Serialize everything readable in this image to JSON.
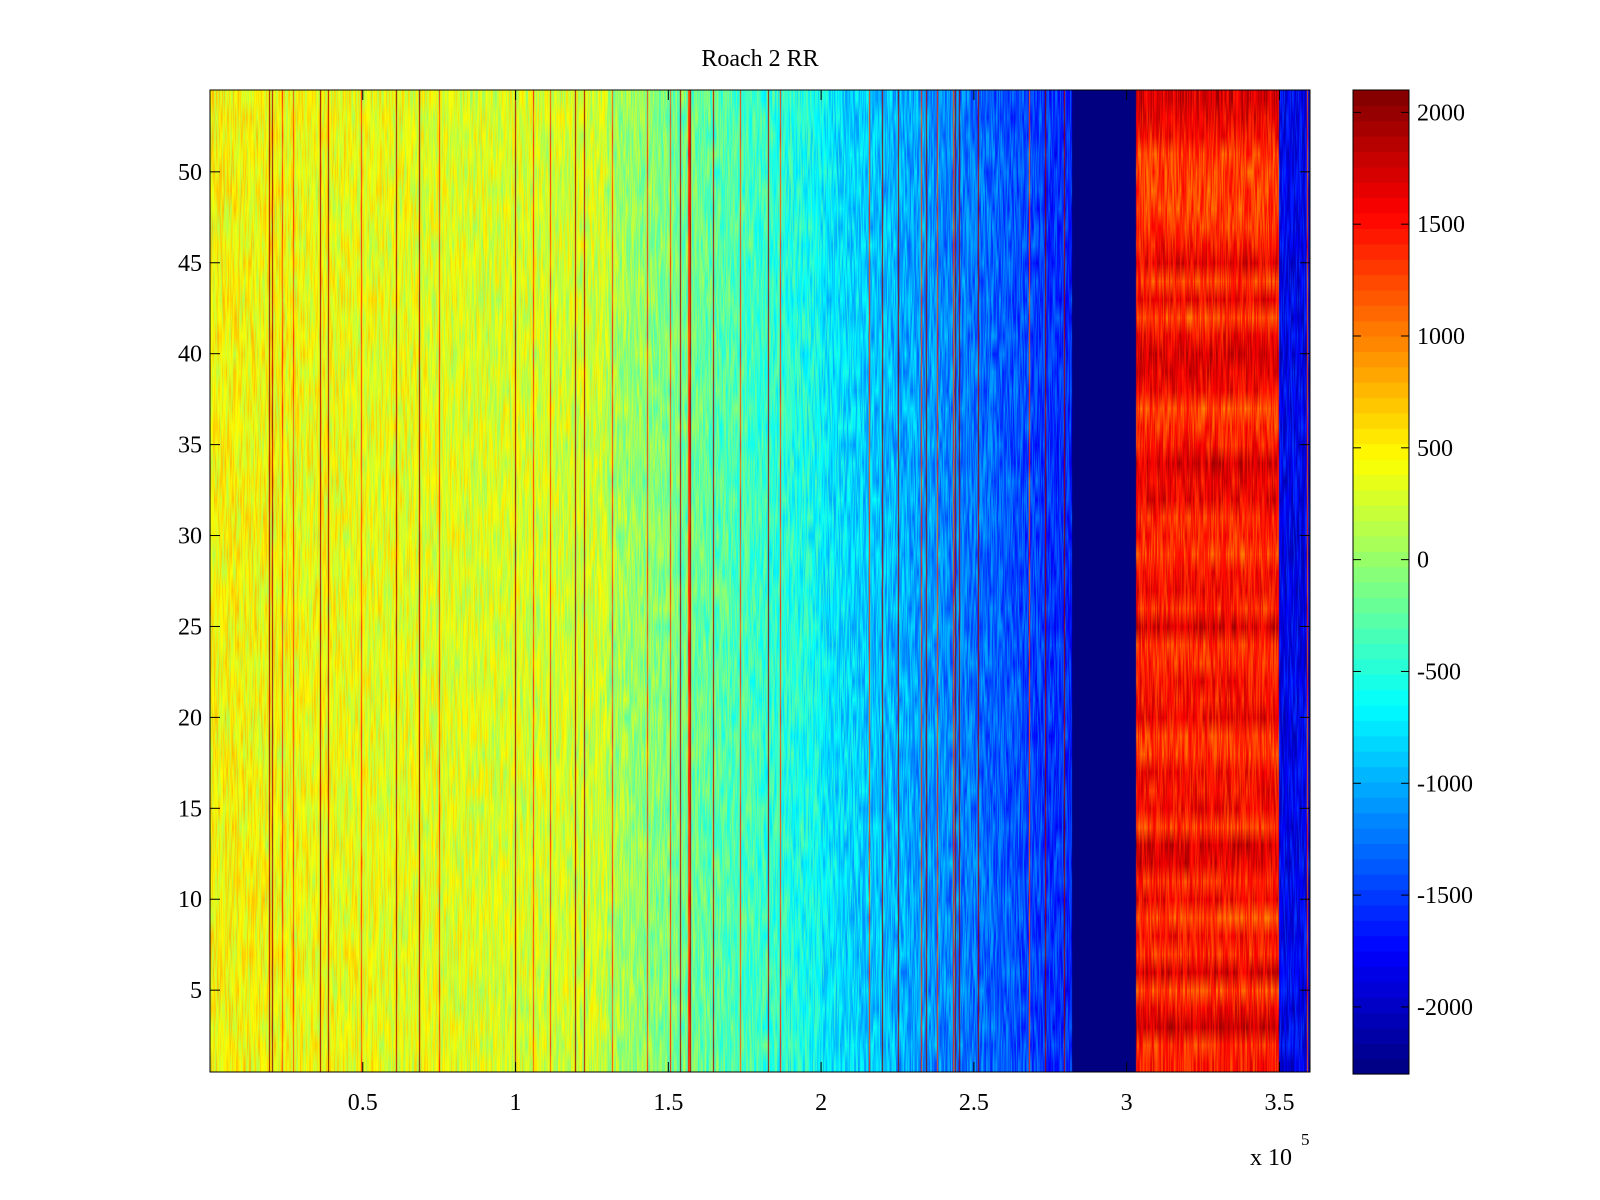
{
  "chart_data": {
    "type": "heatmap",
    "title": "Roach 2 RR",
    "xlabel": "",
    "ylabel": "",
    "x_scale_label": "x 10",
    "x_scale_exponent": "5",
    "xlim": [
      1,
      360000
    ],
    "ylim": [
      0.5,
      54.5
    ],
    "x_ticks": [
      0.5,
      1,
      1.5,
      2,
      2.5,
      3,
      3.5
    ],
    "x_tick_labels": [
      "0.5",
      "1",
      "1.5",
      "2",
      "2.5",
      "3",
      "3.5"
    ],
    "y_ticks": [
      5,
      10,
      15,
      20,
      25,
      30,
      35,
      40,
      45,
      50
    ],
    "y_tick_labels": [
      "5",
      "10",
      "15",
      "20",
      "25",
      "30",
      "35",
      "40",
      "45",
      "50"
    ],
    "rows": 54,
    "colorbar": {
      "colormap": "jet",
      "clim": [
        -2300,
        2100
      ],
      "ticks": [
        2000,
        1500,
        1000,
        500,
        0,
        -500,
        -1000,
        -1500,
        -2000
      ],
      "tick_labels": [
        "2000",
        "1500",
        "1000",
        "500",
        "0",
        "-500",
        "-1000",
        "-1500",
        "-2000"
      ]
    },
    "column_bands": [
      {
        "x_start": 1,
        "x_end": 130000,
        "value_approx": 400
      },
      {
        "x_start": 130000,
        "x_end": 200000,
        "value_approx": -300
      },
      {
        "x_start": 200000,
        "x_end": 282000,
        "value_approx": -1200
      },
      {
        "x_start": 282000,
        "x_end": 303000,
        "value_approx": -2300
      },
      {
        "x_start": 303000,
        "x_end": 350000,
        "value_approx": 1500
      },
      {
        "x_start": 350000,
        "x_end": 360000,
        "value_approx": -1800
      }
    ],
    "grid": false
  }
}
